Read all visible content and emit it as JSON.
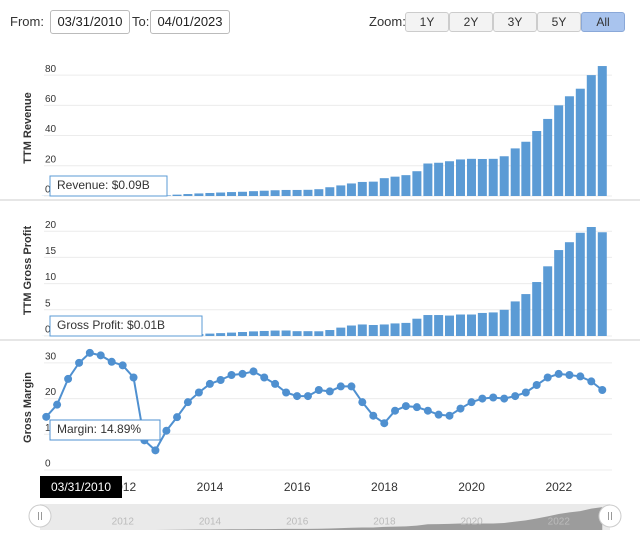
{
  "range_selector": {
    "from_label": "From:",
    "from": "03/31/2010",
    "to_label": "To:",
    "to": "04/01/2023",
    "zoom_label": "Zoom:",
    "buttons": [
      "1Y",
      "2Y",
      "3Y",
      "5Y",
      "All"
    ],
    "selected_index": 4
  },
  "xticks": [
    2012,
    2014,
    2016,
    2018,
    2020,
    2022
  ],
  "chart_data": [
    {
      "type": "bar",
      "ylabel": "TTM Revenue",
      "color": "#5b9bd5",
      "ylim": [
        0,
        90
      ],
      "yticks": [
        0,
        20,
        40,
        60,
        80
      ],
      "tooltip": "Revenue: $0.09B",
      "x": [
        "03/31/2010",
        "06/30/2010",
        "09/30/2010",
        "12/31/2010",
        "03/31/2011",
        "06/30/2011",
        "09/30/2011",
        "12/31/2011",
        "03/31/2012",
        "06/30/2012",
        "09/30/2012",
        "12/31/2012",
        "03/31/2013",
        "06/30/2013",
        "09/30/2013",
        "12/31/2013",
        "03/31/2014",
        "06/30/2014",
        "09/30/2014",
        "12/31/2014",
        "03/31/2015",
        "06/30/2015",
        "09/30/2015",
        "12/31/2015",
        "03/31/2016",
        "06/30/2016",
        "09/30/2016",
        "12/31/2016",
        "03/31/2017",
        "06/30/2017",
        "09/30/2017",
        "12/31/2017",
        "03/31/2018",
        "06/30/2018",
        "09/30/2018",
        "12/31/2018",
        "03/31/2019",
        "06/30/2019",
        "09/30/2019",
        "12/31/2019",
        "03/31/2020",
        "06/30/2020",
        "09/30/2020",
        "12/31/2020",
        "03/31/2021",
        "06/30/2021",
        "09/30/2021",
        "12/31/2021",
        "03/31/2022",
        "06/30/2022",
        "09/30/2022",
        "12/31/2022"
      ],
      "values": [
        0.09,
        0.1,
        0.11,
        0.12,
        0.13,
        0.15,
        0.17,
        0.2,
        0.19,
        0.14,
        0.13,
        0.41,
        0.9,
        1.3,
        1.7,
        2.0,
        2.3,
        2.6,
        2.8,
        3.2,
        3.5,
        3.8,
        4.0,
        4.0,
        4.1,
        4.5,
        5.8,
        7.0,
        8.3,
        9.3,
        9.5,
        11.8,
        12.8,
        13.8,
        16.4,
        21.5,
        22.0,
        23.0,
        24.2,
        24.6,
        24.5,
        24.6,
        26.3,
        31.5,
        35.9,
        43.0,
        51.0,
        60.0,
        66.0,
        71.0,
        80.0,
        86.0
      ]
    },
    {
      "type": "bar",
      "ylabel": "TTM Gross Profit",
      "color": "#5b9bd5",
      "ylim": [
        0,
        25
      ],
      "yticks": [
        0,
        5,
        10,
        15,
        20
      ],
      "tooltip": "Gross Profit: $0.01B",
      "x": [
        "03/31/2010",
        "06/30/2010",
        "09/30/2010",
        "12/31/2010",
        "03/31/2011",
        "06/30/2011",
        "09/30/2011",
        "12/31/2011",
        "03/31/2012",
        "06/30/2012",
        "09/30/2012",
        "12/31/2012",
        "03/31/2013",
        "06/30/2013",
        "09/30/2013",
        "12/31/2013",
        "03/31/2014",
        "06/30/2014",
        "09/30/2014",
        "12/31/2014",
        "03/31/2015",
        "06/30/2015",
        "09/30/2015",
        "12/31/2015",
        "03/31/2016",
        "06/30/2016",
        "09/30/2016",
        "12/31/2016",
        "03/31/2017",
        "06/30/2017",
        "09/30/2017",
        "12/31/2017",
        "03/31/2018",
        "06/30/2018",
        "09/30/2018",
        "12/31/2018",
        "03/31/2019",
        "06/30/2019",
        "09/30/2019",
        "12/31/2019",
        "03/31/2020",
        "06/30/2020",
        "09/30/2020",
        "12/31/2020",
        "03/31/2021",
        "06/30/2021",
        "09/30/2021",
        "12/31/2021",
        "03/31/2022",
        "06/30/2022",
        "09/30/2022",
        "12/31/2022"
      ],
      "values": [
        0.01,
        0.02,
        0.02,
        0.03,
        0.04,
        0.05,
        0.06,
        0.06,
        0.05,
        0.04,
        0.03,
        0.03,
        0.12,
        0.26,
        0.38,
        0.46,
        0.55,
        0.65,
        0.76,
        0.88,
        0.96,
        1.04,
        1.05,
        0.92,
        0.92,
        0.9,
        1.14,
        1.6,
        2.0,
        2.2,
        2.1,
        2.2,
        2.4,
        2.5,
        3.3,
        4.0,
        4.0,
        3.9,
        4.1,
        4.1,
        4.4,
        4.5,
        5.0,
        6.6,
        8.0,
        10.3,
        13.3,
        16.4,
        17.9,
        19.7,
        20.8,
        19.8
      ]
    },
    {
      "type": "line",
      "ylabel": "Gross Margin",
      "color": "#4f90d0",
      "ylim": [
        0,
        35
      ],
      "yticks": [
        0,
        10,
        20,
        30
      ],
      "tooltip": "Margin: 14.89%",
      "x": [
        "03/31/2010",
        "06/30/2010",
        "09/30/2010",
        "12/31/2010",
        "03/31/2011",
        "06/30/2011",
        "09/30/2011",
        "12/31/2011",
        "03/31/2012",
        "06/30/2012",
        "09/30/2012",
        "12/31/2012",
        "03/31/2013",
        "06/30/2013",
        "09/30/2013",
        "12/31/2013",
        "03/31/2014",
        "06/30/2014",
        "09/30/2014",
        "12/31/2014",
        "03/31/2015",
        "06/30/2015",
        "09/30/2015",
        "12/31/2015",
        "03/31/2016",
        "06/30/2016",
        "09/30/2016",
        "12/31/2016",
        "03/31/2017",
        "06/30/2017",
        "09/30/2017",
        "12/31/2017",
        "03/31/2018",
        "06/30/2018",
        "09/30/2018",
        "12/31/2018",
        "03/31/2019",
        "06/30/2019",
        "09/30/2019",
        "12/31/2019",
        "03/31/2020",
        "06/30/2020",
        "09/30/2020",
        "12/31/2020",
        "03/31/2021",
        "06/30/2021",
        "09/30/2021",
        "12/31/2021",
        "03/31/2022",
        "06/30/2022",
        "09/30/2022",
        "12/31/2022"
      ],
      "values": [
        14.89,
        18.3,
        25.5,
        30,
        32.8,
        32.1,
        30.3,
        29.3,
        25.9,
        8.3,
        5.5,
        11,
        14.8,
        19,
        21.7,
        24.1,
        25.2,
        26.6,
        26.9,
        27.6,
        25.9,
        24.1,
        21.7,
        20.7,
        20.7,
        22.4,
        22,
        23.4,
        23.4,
        19,
        15.2,
        13.1,
        16.6,
        17.9,
        17.6,
        16.6,
        15.5,
        15.2,
        17.2,
        19,
        20,
        20.3,
        20,
        20.7,
        21.7,
        23.8,
        25.9,
        26.9,
        26.6,
        26.2,
        24.8,
        22.4
      ]
    }
  ]
}
